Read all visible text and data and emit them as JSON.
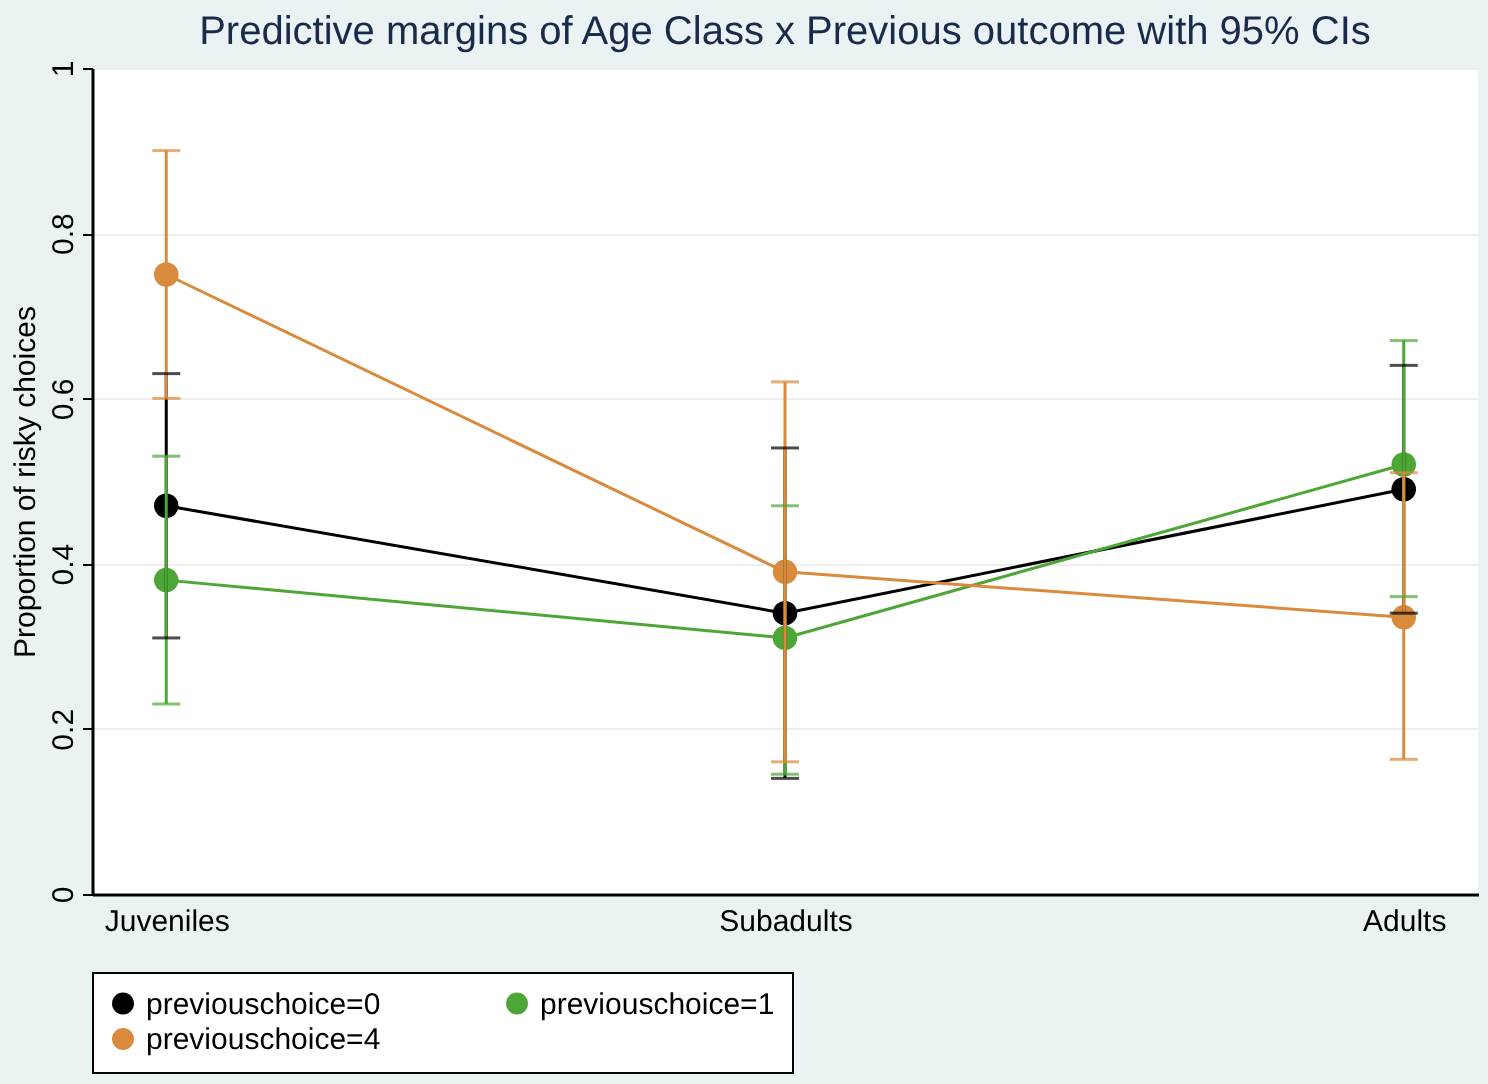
{
  "chart_data": {
    "type": "line",
    "title": "Predictive margins of Age Class x Previous outcome with 95% CIs",
    "ylabel": "Proportion of risky choices",
    "categories": [
      "Juveniles",
      "Subadults",
      "Adults"
    ],
    "series": [
      {
        "name": "previouschoice=0",
        "color": "#000000",
        "values": [
          0.47,
          0.34,
          0.49
        ],
        "errors": [
          [
            0.31,
            0.63
          ],
          [
            0.14,
            0.54
          ],
          [
            0.34,
            0.64
          ]
        ]
      },
      {
        "name": "previouschoice=1",
        "color": "#4da636",
        "values": [
          0.38,
          0.31,
          0.52
        ],
        "errors": [
          [
            0.23,
            0.53
          ],
          [
            0.145,
            0.47
          ],
          [
            0.36,
            0.67
          ]
        ]
      },
      {
        "name": "previouschoice=4",
        "color": "#d98a3c",
        "values": [
          0.75,
          0.39,
          0.335
        ],
        "errors": [
          [
            0.6,
            0.9
          ],
          [
            0.16,
            0.62
          ],
          [
            0.163,
            0.51
          ]
        ]
      }
    ],
    "ylim": [
      0,
      1
    ],
    "yticks": [
      0,
      0.2,
      0.4,
      0.6,
      0.8,
      1
    ],
    "grid": "y",
    "legend": "bottom",
    "marker": "circle",
    "line_style": "solid"
  }
}
